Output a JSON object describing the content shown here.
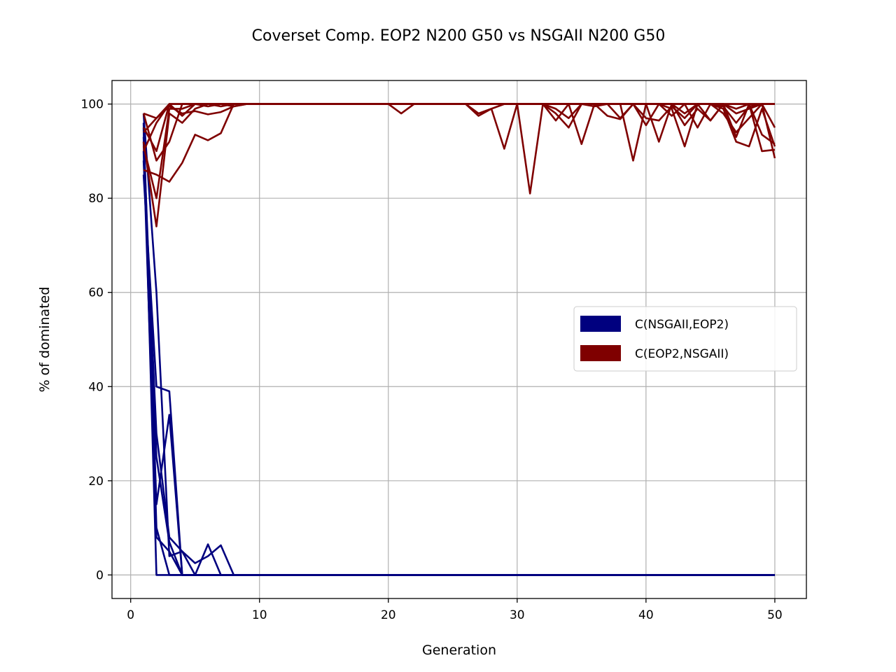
{
  "chart_data": {
    "type": "line",
    "title": "Coverset Comp. EOP2 N200 G50 vs NSGAII N200 G50",
    "xlabel": "Generation",
    "ylabel": "% of dominated",
    "xlim": [
      -1.45,
      52.45
    ],
    "ylim": [
      -5,
      105
    ],
    "xticks": [
      0,
      10,
      20,
      30,
      40,
      50
    ],
    "yticks": [
      0,
      20,
      40,
      60,
      80,
      100
    ],
    "grid": true,
    "legend_position": "center-right",
    "series": [
      {
        "name": "C(NSGAII,EOP2)",
        "color": "#00007f",
        "runs": [
          {
            "x": [
              1,
              2,
              3,
              50
            ],
            "y": [
              95,
              0,
              0,
              0
            ]
          },
          {
            "x": [
              1,
              2,
              3,
              4,
              5,
              50
            ],
            "y": [
              90,
              8,
              5,
              0,
              0,
              0
            ]
          },
          {
            "x": [
              1,
              2,
              3,
              4,
              5,
              6,
              7,
              50
            ],
            "y": [
              98,
              60,
              4,
              5,
              0,
              6.5,
              0,
              0
            ]
          },
          {
            "x": [
              1,
              2,
              3,
              4,
              5,
              6,
              7,
              8,
              50
            ],
            "y": [
              88,
              30,
              8,
              5,
              2.5,
              4,
              6.3,
              0,
              0
            ]
          },
          {
            "x": [
              1,
              2,
              3,
              4,
              50
            ],
            "y": [
              92,
              15,
              34,
              0,
              0
            ]
          },
          {
            "x": [
              1,
              2,
              3,
              4,
              50
            ],
            "y": [
              85,
              40,
              39,
              0,
              0
            ]
          },
          {
            "x": [
              1,
              2,
              3,
              50
            ],
            "y": [
              96,
              10,
              0,
              0
            ]
          },
          {
            "x": [
              1,
              2,
              3,
              4,
              50
            ],
            "y": [
              93,
              25,
              7,
              0,
              0
            ]
          }
        ]
      },
      {
        "name": "C(EOP2,NSGAII)",
        "color": "#7f0000",
        "runs": [
          {
            "x": [
              1,
              2,
              3,
              4,
              5,
              6,
              7,
              8,
              9,
              20,
              21,
              22,
              26,
              27,
              28,
              29,
              30,
              31,
              32,
              33,
              34,
              35,
              36,
              40,
              50
            ],
            "y": [
              92,
              74,
              98,
              96,
              99,
              100,
              100,
              100,
              100,
              100,
              98,
              100,
              100,
              98,
              99,
              90.5,
              100,
              81,
              100,
              98,
              95,
              100,
              100,
              100,
              100
            ]
          },
          {
            "x": [
              1,
              2,
              3,
              4,
              5,
              6,
              7,
              8,
              9,
              26,
              27,
              28,
              29,
              30,
              32,
              33,
              34,
              35,
              36,
              37,
              38,
              39,
              40,
              41,
              42,
              43,
              44,
              45,
              46,
              47,
              48,
              49,
              50
            ],
            "y": [
              98,
              97,
              100,
              100,
              100,
              100,
              100,
              99.5,
              100,
              100,
              97.5,
              99,
              100,
              100,
              100,
              96.5,
              100,
              91.5,
              100,
              100,
              97,
              100,
              95.5,
              100,
              97.5,
              100,
              95,
              100,
              99,
              92,
              91,
              99,
              91
            ]
          },
          {
            "x": [
              1,
              2,
              3,
              4,
              5,
              6,
              7,
              8,
              9,
              30,
              32,
              33,
              34,
              35,
              36,
              37,
              38,
              39,
              40,
              41,
              42,
              43,
              44,
              45,
              46,
              47,
              48,
              49,
              50
            ],
            "y": [
              91,
              80,
              99,
              99,
              100,
              99.5,
              100,
              100,
              100,
              100,
              100,
              99,
              97,
              100,
              99.5,
              100,
              100,
              88,
              100,
              100,
              99,
              91,
              100,
              96.5,
              100,
              93,
              100,
              90,
              90.3
            ]
          },
          {
            "x": [
              1,
              2,
              3,
              4,
              5,
              6,
              7,
              8,
              9,
              36,
              37,
              38,
              39,
              40,
              41,
              42,
              43,
              44,
              45,
              46,
              47,
              48,
              49,
              50
            ],
            "y": [
              86,
              85,
              83.5,
              87.5,
              93.5,
              92.3,
              93.8,
              100,
              100,
              100,
              97.5,
              96.8,
              100,
              97,
              96.5,
              99.5,
              97,
              100,
              100,
              99.5,
              96,
              99.5,
              100,
              88.5
            ]
          },
          {
            "x": [
              1,
              2,
              3,
              4,
              5,
              6,
              7,
              8,
              9,
              40,
              41,
              42,
              43,
              44,
              45,
              46,
              47,
              48,
              49,
              50
            ],
            "y": [
              94,
              97,
              99.5,
              98,
              98.5,
              97.8,
              98.3,
              99.5,
              100,
              100,
              92,
              100,
              98,
              100,
              100,
              98,
              94,
              97,
              100,
              95
            ]
          },
          {
            "x": [
              1,
              2,
              3,
              4,
              5,
              6,
              7,
              9,
              45,
              46,
              47,
              48,
              49,
              50
            ],
            "y": [
              98,
              88,
              92,
              100,
              100,
              100,
              100,
              100,
              100,
              100,
              99,
              100,
              93.5,
              91.5
            ]
          },
          {
            "x": [
              1,
              2,
              3,
              4,
              5,
              6,
              50
            ],
            "y": [
              90,
              96,
              100,
              100,
              100,
              100,
              100
            ]
          },
          {
            "x": [
              1,
              2,
              3,
              4,
              5,
              6,
              7,
              8,
              9,
              42,
              43,
              44,
              45,
              46,
              47,
              48,
              49,
              50
            ],
            "y": [
              95,
              90,
              100,
              97.5,
              100,
              100,
              99.5,
              100,
              100,
              100,
              95.5,
              99,
              96.5,
              100,
              98,
              99,
              100,
              100
            ]
          }
        ]
      }
    ]
  }
}
